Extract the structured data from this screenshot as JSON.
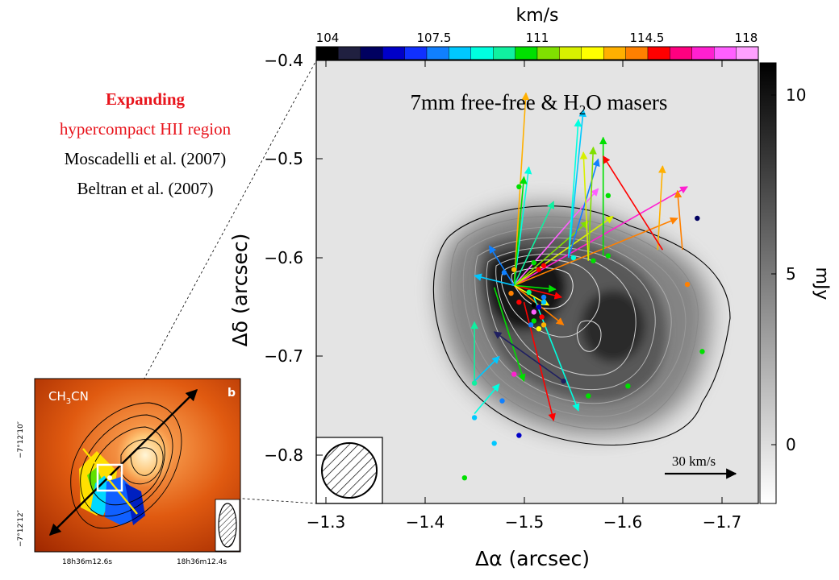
{
  "colorbar": {
    "unit": "km/s",
    "ticks": [
      "104",
      "107.5",
      "111",
      "114.5",
      "118"
    ],
    "range": [
      104,
      118
    ],
    "colors": [
      "#000000",
      "#202040",
      "#000060",
      "#0000c8",
      "#1030ff",
      "#1080ff",
      "#00c8ff",
      "#00ffe0",
      "#10f0a0",
      "#00e000",
      "#80e000",
      "#d8f000",
      "#ffff00",
      "#ffb000",
      "#ff8000",
      "#ff0000",
      "#ff0080",
      "#ff20d0",
      "#ff60ff",
      "#ffa0ff"
    ]
  },
  "grayscale_bar": {
    "unit": "mJy",
    "ticks": [
      "10",
      "5",
      "0"
    ],
    "range": [
      -1,
      11
    ]
  },
  "main_panel": {
    "title_pre": "7mm free-free  & H",
    "title_sub": "2",
    "title_post": "O masers",
    "xlabel": "Δα (arcsec)",
    "ylabel": "Δδ (arcsec)",
    "xticks": [
      "−1.3",
      "−1.4",
      "−1.5",
      "−1.6",
      "−1.7"
    ],
    "yticks": [
      "−0.4",
      "−0.5",
      "−0.6",
      "−0.7",
      "−0.8"
    ],
    "xlim": [
      -1.3,
      -1.75
    ],
    "ylim": [
      -0.4,
      -0.85
    ],
    "scale_label": "30 km/s"
  },
  "annotation": {
    "line1": "Expanding",
    "line2": "hypercompact  HII region",
    "line3": "Moscadelli et al. (2007)",
    "line4": "Beltran et al. (2007)",
    "accent": "#e8141c"
  },
  "inset": {
    "label": "CH",
    "label_sub": "3",
    "label_post": "CN",
    "panel_letter": "b",
    "yticks": [
      "−7°12′10″",
      "−7°12′12″"
    ],
    "xticks": [
      "18h36m12.6s",
      "18h36m12.4s"
    ]
  },
  "chart_data": {
    "type": "scatter",
    "x_label": "Δα (arcsec)",
    "y_label": "Δδ (arcsec)",
    "xlim": [
      -1.3,
      -1.75
    ],
    "ylim": [
      -0.4,
      -0.85
    ],
    "masers": [
      {
        "x": -1.49,
        "y": -0.628,
        "vx": 0.085,
        "vy": 0.098,
        "c": "#ff60ff"
      },
      {
        "x": -1.49,
        "y": -0.628,
        "vx": 0.175,
        "vy": 0.1,
        "c": "#ff20d0"
      },
      {
        "x": -1.49,
        "y": -0.628,
        "vx": 0.165,
        "vy": 0.068,
        "c": "#ff8000"
      },
      {
        "x": -1.49,
        "y": -0.628,
        "vx": 0.1,
        "vy": 0.07,
        "c": "#d8f000"
      },
      {
        "x": -1.49,
        "y": -0.628,
        "vx": 0.075,
        "vy": 0.065,
        "c": "#80e000"
      },
      {
        "x": -1.49,
        "y": -0.628,
        "vx": 0.04,
        "vy": 0.085,
        "c": "#10f0a0"
      },
      {
        "x": -1.49,
        "y": -0.628,
        "vx": 0.05,
        "vy": -0.04,
        "c": "#ff8000"
      },
      {
        "x": -1.49,
        "y": -0.628,
        "vx": 0.048,
        "vy": -0.012,
        "c": "#ff0000"
      },
      {
        "x": -1.49,
        "y": -0.628,
        "vx": 0.042,
        "vy": -0.004,
        "c": "#00e000"
      },
      {
        "x": -1.49,
        "y": -0.628,
        "vx": 0.012,
        "vy": 0.195,
        "c": "#ffb000"
      },
      {
        "x": -1.49,
        "y": -0.628,
        "vx": -0.04,
        "vy": 0.01,
        "c": "#00c8ff"
      },
      {
        "x": -1.49,
        "y": -0.628,
        "vx": 0.035,
        "vy": -0.02,
        "c": "#ffff00"
      },
      {
        "x": -1.49,
        "y": -0.628,
        "vx": 0.015,
        "vy": 0.12,
        "c": "#00ffe0"
      },
      {
        "x": -1.49,
        "y": -0.628,
        "vx": 0.01,
        "vy": 0.11,
        "c": "#00e000"
      },
      {
        "x": -1.49,
        "y": -0.628,
        "vx": -0.025,
        "vy": 0.04,
        "c": "#1080ff"
      },
      {
        "x": -1.5,
        "y": -0.645,
        "vx": 0.03,
        "vy": -0.12,
        "c": "#ff0000"
      },
      {
        "x": -1.51,
        "y": -0.64,
        "vx": 0.045,
        "vy": -0.115,
        "c": "#00ffe0"
      },
      {
        "x": -1.47,
        "y": -0.63,
        "vx": 0.03,
        "vy": -0.095,
        "c": "#00e000"
      },
      {
        "x": -1.45,
        "y": -0.725,
        "vx": 0.0,
        "vy": 0.06,
        "c": "#10f0a0"
      },
      {
        "x": -1.45,
        "y": -0.725,
        "vx": 0.025,
        "vy": 0.025,
        "c": "#00c8ff"
      },
      {
        "x": -1.45,
        "y": -0.758,
        "vx": 0.025,
        "vy": 0.03,
        "c": "#00ffe0"
      },
      {
        "x": -1.545,
        "y": -0.6,
        "vx": 0.015,
        "vy": 0.15,
        "c": "#00c8ff"
      },
      {
        "x": -1.545,
        "y": -0.6,
        "vx": 0.01,
        "vy": 0.14,
        "c": "#00ffe0"
      },
      {
        "x": -1.545,
        "y": -0.6,
        "vx": 0.03,
        "vy": 0.1,
        "c": "#1080ff"
      },
      {
        "x": -1.565,
        "y": -0.603,
        "vx": 0.005,
        "vy": 0.115,
        "c": "#80e000"
      },
      {
        "x": -1.565,
        "y": -0.603,
        "vx": -0.005,
        "vy": 0.11,
        "c": "#d8f000"
      },
      {
        "x": -1.58,
        "y": -0.598,
        "vx": 0.0,
        "vy": 0.12,
        "c": "#00e000"
      },
      {
        "x": -1.635,
        "y": -0.592,
        "vx": 0.005,
        "vy": 0.085,
        "c": "#ffb000"
      },
      {
        "x": -1.64,
        "y": -0.592,
        "vx": -0.06,
        "vy": 0.095,
        "c": "#ff0000"
      },
      {
        "x": -1.66,
        "y": -0.592,
        "vx": -0.005,
        "vy": 0.06,
        "c": "#ff8000"
      },
      {
        "x": -1.54,
        "y": -0.725,
        "vx": -0.07,
        "vy": 0.05,
        "c": "#202060"
      }
    ],
    "points": [
      {
        "x": -1.55,
        "y": -0.6,
        "c": "#00ffe0"
      },
      {
        "x": -1.52,
        "y": -0.608,
        "c": "#ff0000"
      },
      {
        "x": -1.515,
        "y": -0.612,
        "c": "#ff0000"
      },
      {
        "x": -1.505,
        "y": -0.635,
        "c": "#00ff80"
      },
      {
        "x": -1.51,
        "y": -0.648,
        "c": "#000000"
      },
      {
        "x": -1.515,
        "y": -0.65,
        "c": "#0000c8"
      },
      {
        "x": -1.51,
        "y": -0.655,
        "c": "#ff60ff"
      },
      {
        "x": -1.518,
        "y": -0.66,
        "c": "#ff0000"
      },
      {
        "x": -1.51,
        "y": -0.664,
        "c": "#00e000"
      },
      {
        "x": -1.52,
        "y": -0.668,
        "c": "#ffb000"
      },
      {
        "x": -1.515,
        "y": -0.672,
        "c": "#ffff00"
      },
      {
        "x": -1.507,
        "y": -0.668,
        "c": "#1080ff"
      },
      {
        "x": -1.49,
        "y": -0.612,
        "c": "#ffb000"
      },
      {
        "x": -1.487,
        "y": -0.636,
        "c": "#ff8000"
      },
      {
        "x": -1.495,
        "y": -0.645,
        "c": "#ff0000"
      },
      {
        "x": -1.48,
        "y": -0.615,
        "c": "#1080ff"
      },
      {
        "x": -1.51,
        "y": -0.605,
        "c": "#00e000"
      },
      {
        "x": -1.52,
        "y": -0.64,
        "c": "#1080ff"
      },
      {
        "x": -1.52,
        "y": -0.645,
        "c": "#00c8ff"
      },
      {
        "x": -1.57,
        "y": -0.603,
        "c": "#00e000"
      },
      {
        "x": -1.585,
        "y": -0.598,
        "c": "#00e000"
      },
      {
        "x": -1.495,
        "y": -0.528,
        "c": "#00e000"
      },
      {
        "x": -1.585,
        "y": -0.537,
        "c": "#00e000"
      },
      {
        "x": -1.675,
        "y": -0.56,
        "c": "#000060"
      },
      {
        "x": -1.665,
        "y": -0.627,
        "c": "#ff8000"
      },
      {
        "x": -1.68,
        "y": -0.695,
        "c": "#00e000"
      },
      {
        "x": -1.605,
        "y": -0.73,
        "c": "#00e000"
      },
      {
        "x": -1.565,
        "y": -0.74,
        "c": "#00e000"
      },
      {
        "x": -1.54,
        "y": -0.725,
        "c": "#202060"
      },
      {
        "x": -1.49,
        "y": -0.718,
        "c": "#ff20d0"
      },
      {
        "x": -1.45,
        "y": -0.727,
        "c": "#10f0a0"
      },
      {
        "x": -1.45,
        "y": -0.762,
        "c": "#00c8ff"
      },
      {
        "x": -1.478,
        "y": -0.745,
        "c": "#1080ff"
      },
      {
        "x": -1.495,
        "y": -0.78,
        "c": "#0000c8"
      },
      {
        "x": -1.47,
        "y": -0.788,
        "c": "#00c8ff"
      },
      {
        "x": -1.44,
        "y": -0.823,
        "c": "#00e000"
      }
    ]
  }
}
